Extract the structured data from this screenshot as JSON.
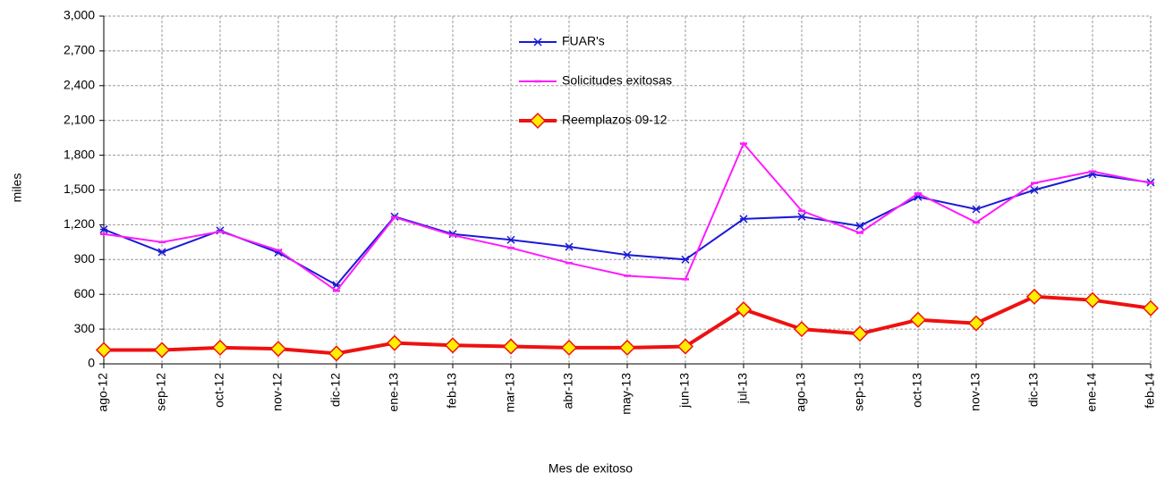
{
  "chart_data": {
    "type": "line",
    "x_label": "Mes de exitoso",
    "y_label": "miles",
    "categories": [
      "ago-12",
      "sep-12",
      "oct-12",
      "nov-12",
      "dic-12",
      "ene-13",
      "feb-13",
      "mar-13",
      "abr-13",
      "may-13",
      "jun-13",
      "jul-13",
      "ago-13",
      "sep-13",
      "oct-13",
      "nov-13",
      "dic-13",
      "ene-14",
      "feb-14"
    ],
    "series": [
      {
        "name": "FUAR's",
        "color": "#1a1ad6",
        "marker": "star",
        "values": [
          1160,
          964,
          1150,
          960,
          680,
          1270,
          1120,
          1070,
          1010,
          940,
          900,
          1250,
          1270,
          1190,
          1440,
          1334,
          1500,
          1635,
          1565
        ]
      },
      {
        "name": "Solicitudes exitosas",
        "color": "#ff1aff",
        "marker": "dash",
        "values": [
          1120,
          1050,
          1141,
          980,
          630,
          1264,
          1110,
          1000,
          870,
          760,
          730,
          1900,
          1320,
          1130,
          1470,
          1220,
          1560,
          1660,
          1560
        ]
      },
      {
        "name": "Reemplazos 09-12",
        "color": "#ee1111",
        "marker": "diamond",
        "marker_fill": "#ffee00",
        "values": [
          120,
          120,
          140,
          130,
          90,
          180,
          160,
          150,
          140,
          140,
          150,
          470,
          300,
          260,
          380,
          350,
          580,
          550,
          480
        ]
      }
    ],
    "ylim": [
      0,
      3000
    ],
    "yticks": [
      0,
      300,
      600,
      900,
      {
        "value": 1200,
        "label": "1,200"
      },
      {
        "value": 1500,
        "label": "1,500"
      },
      {
        "value": 1800,
        "label": "1,800"
      },
      {
        "value": 2100,
        "label": "2,100"
      },
      {
        "value": 2400,
        "label": "2,400"
      },
      {
        "value": 2700,
        "label": "2,700"
      },
      {
        "value": 3000,
        "label": "3,000"
      }
    ],
    "grid": true,
    "legend": "top"
  }
}
